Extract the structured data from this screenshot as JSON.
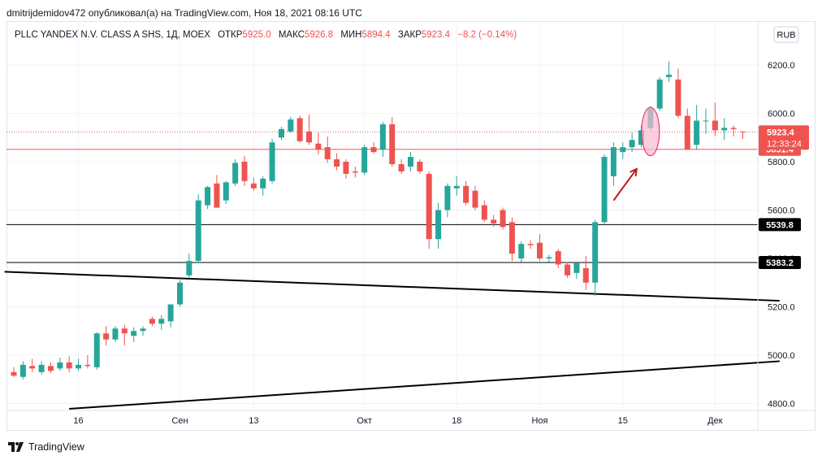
{
  "header": {
    "publish_line": "dmitrijdemidov472 опубликовал(а) на TradingView.com, Ноя 18, 2021 08:16 UTC"
  },
  "legend": {
    "instrument": "PLLC YANDEX N.V. CLASS A SHS, 1Д, MOEX",
    "open_label": "ОТКР",
    "open_value": "5925.0",
    "high_label": "МАКС",
    "high_value": "5926.8",
    "low_label": "МИН",
    "low_value": "5894.4",
    "close_label": "ЗАКР",
    "close_value": "5923.4",
    "change": "−8.2 (−0.14%)"
  },
  "currency_button": "RUB",
  "footer": {
    "brand": "TradingView"
  },
  "colors": {
    "up": "#26a69a",
    "down": "#ef5350",
    "price_line": "#ef5350",
    "trend_line": "#000000",
    "arrow": "#b71c1c",
    "ellipse_fill": "#f8bbd0",
    "ellipse_stroke": "#e91e63"
  },
  "chart_data": {
    "type": "candlestick",
    "title": "PLLC YANDEX N.V. CLASS A SHS, 1Д, MOEX",
    "ylim": [
      4790,
      6250
    ],
    "yticks": [
      4800,
      5000,
      5200,
      5400,
      5600,
      5800,
      6000,
      6200
    ],
    "y_tick_labels": [
      "4800.0",
      "5000.0",
      "5200.0",
      "5400.0",
      "5600.0",
      "5800.0",
      "6000.0",
      "6200.0"
    ],
    "x_tick_labels": [
      {
        "label": "16",
        "index": 7
      },
      {
        "label": "Сен",
        "index": 18
      },
      {
        "label": "13",
        "index": 26
      },
      {
        "label": "Окт",
        "index": 38
      },
      {
        "label": "18",
        "index": 48
      },
      {
        "label": "Ноя",
        "index": 57
      },
      {
        "label": "15",
        "index": 66
      },
      {
        "label": "Дек",
        "index": 76
      }
    ],
    "candles": [
      {
        "o": 4930,
        "h": 4950,
        "l": 4910,
        "c": 4915
      },
      {
        "o": 4910,
        "h": 4975,
        "l": 4900,
        "c": 4960
      },
      {
        "o": 4955,
        "h": 4985,
        "l": 4930,
        "c": 4945
      },
      {
        "o": 4930,
        "h": 4975,
        "l": 4920,
        "c": 4960
      },
      {
        "o": 4955,
        "h": 4970,
        "l": 4925,
        "c": 4935
      },
      {
        "o": 4945,
        "h": 4990,
        "l": 4935,
        "c": 4970
      },
      {
        "o": 4970,
        "h": 4995,
        "l": 4930,
        "c": 4945
      },
      {
        "o": 4945,
        "h": 4985,
        "l": 4935,
        "c": 4960
      },
      {
        "o": 4960,
        "h": 5000,
        "l": 4945,
        "c": 4955
      },
      {
        "o": 4950,
        "h": 5095,
        "l": 4940,
        "c": 5090
      },
      {
        "o": 5090,
        "h": 5120,
        "l": 5040,
        "c": 5065
      },
      {
        "o": 5065,
        "h": 5120,
        "l": 5055,
        "c": 5110
      },
      {
        "o": 5110,
        "h": 5125,
        "l": 5040,
        "c": 5090
      },
      {
        "o": 5080,
        "h": 5115,
        "l": 5055,
        "c": 5100
      },
      {
        "o": 5100,
        "h": 5120,
        "l": 5080,
        "c": 5110
      },
      {
        "o": 5150,
        "h": 5160,
        "l": 5120,
        "c": 5130
      },
      {
        "o": 5130,
        "h": 5165,
        "l": 5105,
        "c": 5150
      },
      {
        "o": 5140,
        "h": 5205,
        "l": 5115,
        "c": 5210
      },
      {
        "o": 5210,
        "h": 5310,
        "l": 5200,
        "c": 5300
      },
      {
        "o": 5330,
        "h": 5420,
        "l": 5320,
        "c": 5390
      },
      {
        "o": 5390,
        "h": 5665,
        "l": 5380,
        "c": 5640
      },
      {
        "o": 5620,
        "h": 5700,
        "l": 5605,
        "c": 5695
      },
      {
        "o": 5710,
        "h": 5745,
        "l": 5620,
        "c": 5610
      },
      {
        "o": 5640,
        "h": 5720,
        "l": 5625,
        "c": 5715
      },
      {
        "o": 5710,
        "h": 5810,
        "l": 5700,
        "c": 5795
      },
      {
        "o": 5800,
        "h": 5825,
        "l": 5700,
        "c": 5720
      },
      {
        "o": 5710,
        "h": 5735,
        "l": 5680,
        "c": 5690
      },
      {
        "o": 5690,
        "h": 5740,
        "l": 5660,
        "c": 5730
      },
      {
        "o": 5720,
        "h": 5895,
        "l": 5710,
        "c": 5880
      },
      {
        "o": 5900,
        "h": 5945,
        "l": 5890,
        "c": 5935
      },
      {
        "o": 5925,
        "h": 5985,
        "l": 5920,
        "c": 5975
      },
      {
        "o": 5980,
        "h": 5990,
        "l": 5880,
        "c": 5885
      },
      {
        "o": 5925,
        "h": 5995,
        "l": 5870,
        "c": 5880
      },
      {
        "o": 5875,
        "h": 5920,
        "l": 5830,
        "c": 5850
      },
      {
        "o": 5860,
        "h": 5905,
        "l": 5795,
        "c": 5810
      },
      {
        "o": 5810,
        "h": 5835,
        "l": 5765,
        "c": 5780
      },
      {
        "o": 5800,
        "h": 5810,
        "l": 5730,
        "c": 5750
      },
      {
        "o": 5760,
        "h": 5780,
        "l": 5735,
        "c": 5755
      },
      {
        "o": 5755,
        "h": 5870,
        "l": 5745,
        "c": 5860
      },
      {
        "o": 5860,
        "h": 5880,
        "l": 5835,
        "c": 5840
      },
      {
        "o": 5850,
        "h": 5965,
        "l": 5820,
        "c": 5955
      },
      {
        "o": 5955,
        "h": 5985,
        "l": 5780,
        "c": 5790
      },
      {
        "o": 5790,
        "h": 5810,
        "l": 5750,
        "c": 5760
      },
      {
        "o": 5780,
        "h": 5840,
        "l": 5760,
        "c": 5820
      },
      {
        "o": 5800,
        "h": 5810,
        "l": 5750,
        "c": 5760
      },
      {
        "o": 5750,
        "h": 5760,
        "l": 5440,
        "c": 5480
      },
      {
        "o": 5480,
        "h": 5630,
        "l": 5440,
        "c": 5600
      },
      {
        "o": 5600,
        "h": 5710,
        "l": 5570,
        "c": 5700
      },
      {
        "o": 5690,
        "h": 5740,
        "l": 5660,
        "c": 5700
      },
      {
        "o": 5700,
        "h": 5720,
        "l": 5620,
        "c": 5630
      },
      {
        "o": 5680,
        "h": 5700,
        "l": 5600,
        "c": 5610
      },
      {
        "o": 5620,
        "h": 5640,
        "l": 5550,
        "c": 5560
      },
      {
        "o": 5560,
        "h": 5580,
        "l": 5530,
        "c": 5545
      },
      {
        "o": 5600,
        "h": 5610,
        "l": 5520,
        "c": 5530
      },
      {
        "o": 5550,
        "h": 5570,
        "l": 5390,
        "c": 5420
      },
      {
        "o": 5400,
        "h": 5470,
        "l": 5385,
        "c": 5460
      },
      {
        "o": 5460,
        "h": 5475,
        "l": 5440,
        "c": 5455
      },
      {
        "o": 5465,
        "h": 5500,
        "l": 5390,
        "c": 5400
      },
      {
        "o": 5400,
        "h": 5415,
        "l": 5385,
        "c": 5405
      },
      {
        "o": 5430,
        "h": 5440,
        "l": 5360,
        "c": 5375
      },
      {
        "o": 5375,
        "h": 5385,
        "l": 5320,
        "c": 5330
      },
      {
        "o": 5340,
        "h": 5380,
        "l": 5315,
        "c": 5380
      },
      {
        "o": 5360,
        "h": 5410,
        "l": 5270,
        "c": 5300
      },
      {
        "o": 5300,
        "h": 5560,
        "l": 5245,
        "c": 5550
      },
      {
        "o": 5550,
        "h": 5830,
        "l": 5540,
        "c": 5820
      },
      {
        "o": 5740,
        "h": 5880,
        "l": 5700,
        "c": 5860
      },
      {
        "o": 5840,
        "h": 5880,
        "l": 5810,
        "c": 5860
      },
      {
        "o": 5860,
        "h": 5920,
        "l": 5840,
        "c": 5890
      },
      {
        "o": 5870,
        "h": 5950,
        "l": 5860,
        "c": 5930
      },
      {
        "o": 5940,
        "h": 6030,
        "l": 5930,
        "c": 6020
      },
      {
        "o": 6020,
        "h": 6150,
        "l": 6010,
        "c": 6140
      },
      {
        "o": 6150,
        "h": 6215,
        "l": 6130,
        "c": 6160
      },
      {
        "o": 6140,
        "h": 6185,
        "l": 5980,
        "c": 5990
      },
      {
        "o": 5990,
        "h": 6020,
        "l": 5850,
        "c": 5850
      },
      {
        "o": 5870,
        "h": 6035,
        "l": 5850,
        "c": 5970
      },
      {
        "o": 5970,
        "h": 6020,
        "l": 5915,
        "c": 5970
      },
      {
        "o": 5970,
        "h": 6045,
        "l": 5905,
        "c": 5930
      },
      {
        "o": 5930,
        "h": 5980,
        "l": 5890,
        "c": 5940
      },
      {
        "o": 5940,
        "h": 5950,
        "l": 5905,
        "c": 5935
      },
      {
        "o": 5925,
        "h": 5927,
        "l": 5894,
        "c": 5923
      }
    ],
    "horizontal_levels": [
      {
        "label": "5851.4",
        "value": 5851.4,
        "color": "#ef5350"
      },
      {
        "label": "5539.8",
        "value": 5539.8,
        "color": "#000000"
      },
      {
        "label": "5383.2",
        "value": 5383.2,
        "color": "#000000"
      }
    ],
    "last_price": {
      "value": 5923.4,
      "label": "5923.4",
      "countdown": "12:33:24"
    },
    "trend_lines": [
      {
        "from": {
          "index": -1,
          "value": 5345
        },
        "to": {
          "index": 83,
          "value": 5225
        }
      },
      {
        "from": {
          "index": 6,
          "value": 4778
        },
        "to": {
          "index": 83,
          "value": 4975
        }
      }
    ],
    "ellipse": {
      "index": 69,
      "center": 5925,
      "half_height": 100
    },
    "arrow": {
      "from": {
        "index": 65,
        "value": 5640
      },
      "to": {
        "index": 67.5,
        "value": 5770
      }
    }
  }
}
